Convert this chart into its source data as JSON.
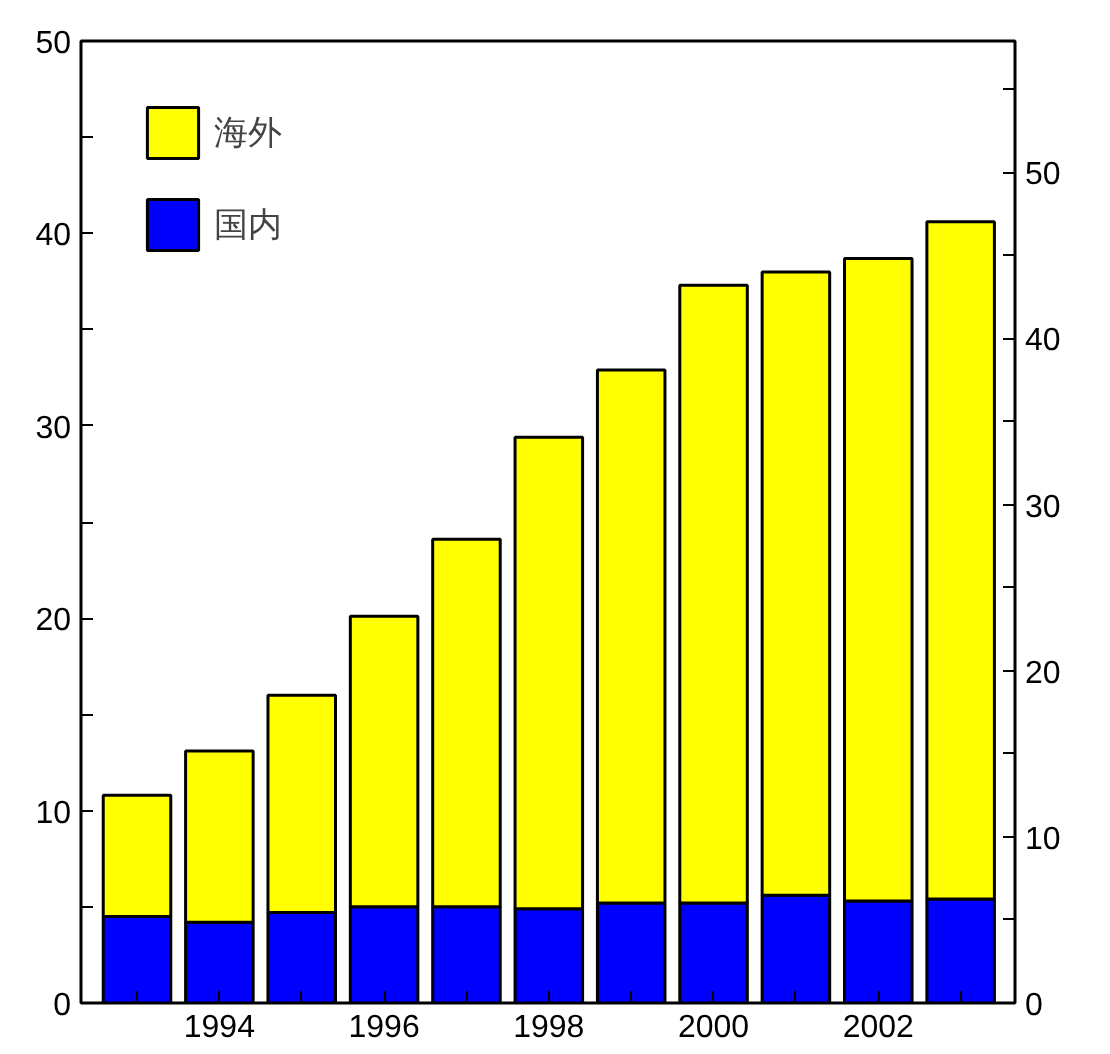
{
  "chart_data": {
    "type": "bar",
    "stacked": true,
    "x": [
      1993,
      1994,
      1995,
      1996,
      1997,
      1998,
      1999,
      2000,
      2001,
      2002,
      2003
    ],
    "series": [
      {
        "name": "国内",
        "color": "#0000ff",
        "values": [
          4.5,
          4.2,
          4.7,
          5.0,
          5.0,
          4.9,
          5.2,
          5.2,
          5.6,
          5.3,
          5.4
        ]
      },
      {
        "name": "海外",
        "color": "#ffff00",
        "values": [
          6.3,
          8.9,
          11.3,
          15.1,
          19.1,
          24.5,
          27.7,
          32.1,
          32.4,
          33.4,
          35.2
        ]
      }
    ],
    "xlim": [
      1992.32,
      2003.66
    ],
    "xticks": [
      {
        "value": 1993,
        "label": null
      },
      1994,
      {
        "value": 1995,
        "label": null
      },
      1996,
      {
        "value": 1997,
        "label": null
      },
      1998,
      {
        "value": 1999,
        "label": null
      },
      2000,
      {
        "value": 2001,
        "label": null
      },
      2002,
      {
        "value": 2003,
        "label": null
      }
    ],
    "ylim": [
      0,
      50
    ],
    "yticks": [
      0,
      {
        "value": 5,
        "label": null
      },
      10,
      {
        "value": 15,
        "label": null
      },
      20,
      {
        "value": 25,
        "label": null
      },
      30,
      {
        "value": 35,
        "label": null
      },
      40,
      {
        "value": 45,
        "label": null
      },
      50
    ],
    "y2lim": [
      0,
      57.9
    ],
    "y2ticks": [
      0,
      {
        "value": 5,
        "label": null
      },
      10,
      {
        "value": 15,
        "label": null
      },
      20,
      {
        "value": 25,
        "label": null
      },
      30,
      {
        "value": 35,
        "label": null
      },
      40,
      {
        "value": 45,
        "label": null
      },
      50,
      {
        "value": 55,
        "label": null
      }
    ],
    "legend": "top left",
    "grid": false
  }
}
